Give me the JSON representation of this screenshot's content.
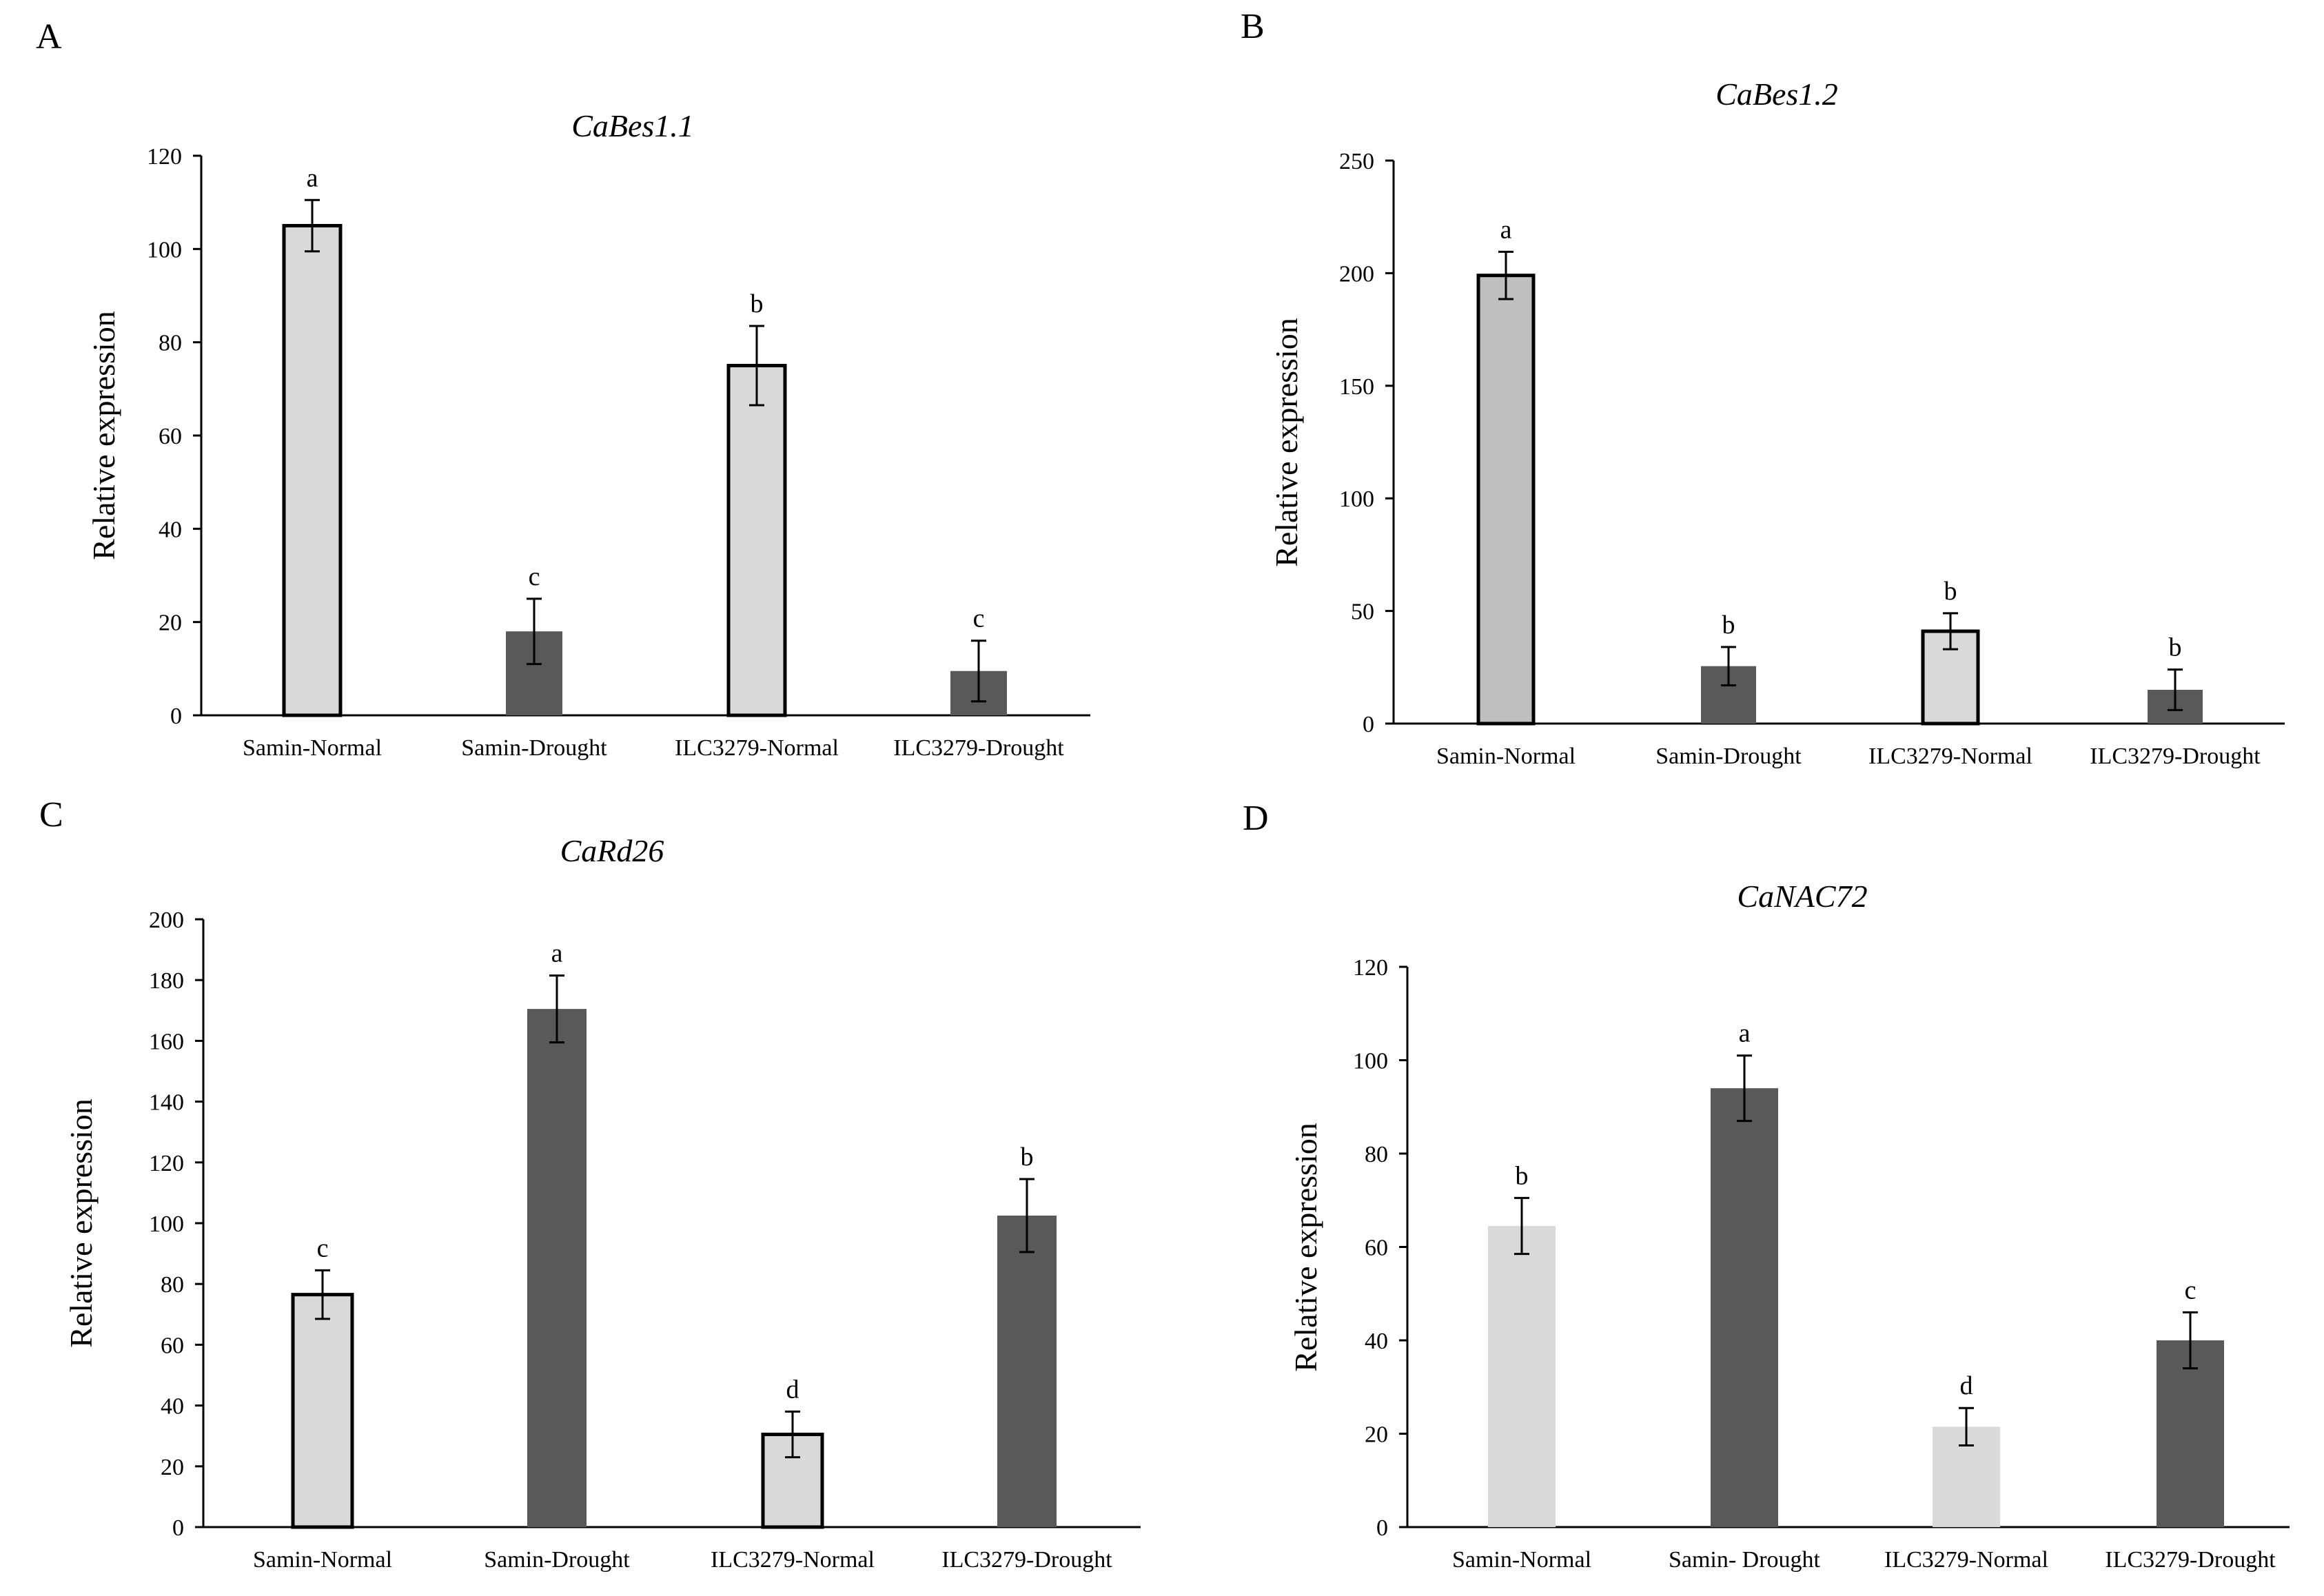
{
  "figure": {
    "title": ""
  },
  "colors": {
    "light": "#d9d9d9",
    "mid": "#bfbfbf",
    "dark": "#595959",
    "outline": "#000000"
  },
  "chart_data": [
    {
      "panel": "A",
      "type": "bar",
      "title": "CaBes1.1",
      "xlabel": "",
      "ylabel": "Relative expression",
      "ylim": [
        0,
        120
      ],
      "yticks": [
        0,
        20,
        40,
        60,
        80,
        100,
        120
      ],
      "categories": [
        "Samin-Normal",
        "Samin-Drought",
        "ILC3279-Normal",
        "ILC3279-Drought"
      ],
      "values": [
        105,
        18,
        75,
        9.5
      ],
      "errors": [
        5.5,
        7,
        8.5,
        6.5
      ],
      "significance": [
        "a",
        "c",
        "b",
        "c"
      ],
      "fills": [
        "light",
        "dark",
        "light",
        "dark"
      ],
      "outlined": [
        true,
        false,
        true,
        false
      ]
    },
    {
      "panel": "B",
      "type": "bar",
      "title": "CaBes1.2",
      "xlabel": "",
      "ylabel": "Relative expression",
      "ylim": [
        0,
        250
      ],
      "yticks": [
        0,
        50,
        100,
        150,
        200,
        250
      ],
      "categories": [
        "Samin-Normal",
        "Samin-Drought",
        "ILC3279-Normal",
        "ILC3279-Drought"
      ],
      "values": [
        199,
        25.5,
        41,
        15
      ],
      "errors": [
        10.5,
        8.5,
        8,
        9
      ],
      "significance": [
        "a",
        "b",
        "b",
        "b"
      ],
      "fills": [
        "mid",
        "dark",
        "light",
        "dark"
      ],
      "outlined": [
        true,
        false,
        true,
        false
      ]
    },
    {
      "panel": "C",
      "type": "bar",
      "title": "CaRd26",
      "xlabel": "",
      "ylabel": "Relative expression",
      "ylim": [
        0,
        200
      ],
      "yticks": [
        0,
        20,
        40,
        60,
        80,
        100,
        120,
        140,
        160,
        180,
        200
      ],
      "categories": [
        "Samin-Normal",
        "Samin-Drought",
        "ILC3279-Normal",
        "ILC3279-Drought"
      ],
      "values": [
        76.5,
        170.5,
        30.5,
        102.5
      ],
      "errors": [
        8,
        11,
        7.5,
        12
      ],
      "significance": [
        "c",
        "a",
        "d",
        "b"
      ],
      "fills": [
        "light",
        "dark",
        "light",
        "dark"
      ],
      "outlined": [
        true,
        false,
        true,
        false
      ]
    },
    {
      "panel": "D",
      "type": "bar",
      "title": "CaNAC72",
      "xlabel": "",
      "ylabel": "Relative expression",
      "ylim": [
        0,
        120
      ],
      "yticks": [
        0,
        20,
        40,
        60,
        80,
        100,
        120
      ],
      "categories": [
        "Samin-Normal",
        "Samin- Drought",
        "ILC3279-Normal",
        "ILC3279-Drought"
      ],
      "values": [
        64.5,
        94,
        21.5,
        40
      ],
      "errors": [
        6,
        7,
        4,
        6
      ],
      "significance": [
        "b",
        "a",
        "d",
        "c"
      ],
      "fills": [
        "light",
        "dark",
        "light",
        "dark"
      ],
      "outlined": [
        false,
        false,
        false,
        false
      ]
    }
  ]
}
